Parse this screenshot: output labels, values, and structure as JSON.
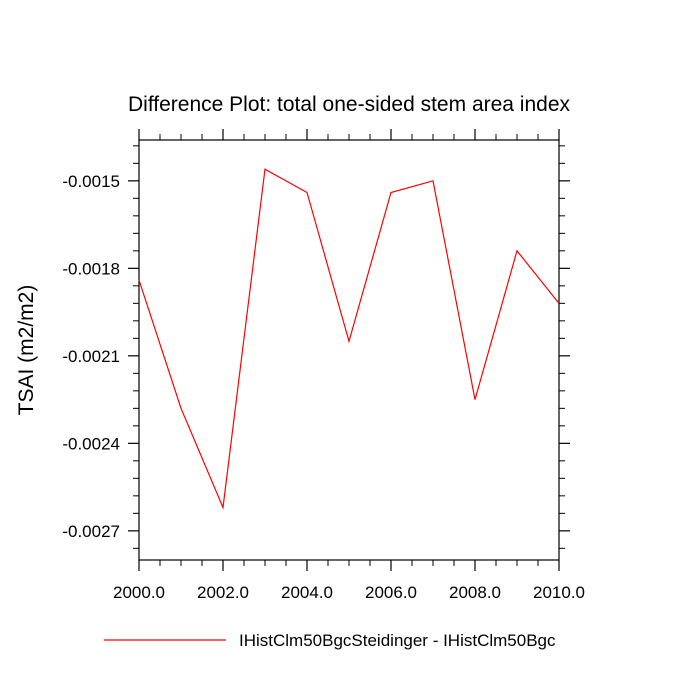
{
  "chart_data": {
    "type": "line",
    "title": "Difference Plot: total one-sided stem area index",
    "xlabel": "",
    "ylabel": "TSAI  (m2/m2)",
    "xlim": [
      2000,
      2010
    ],
    "ylim": [
      -0.0028,
      -0.00136
    ],
    "x_ticks": [
      2000,
      2002,
      2004,
      2006,
      2008,
      2010
    ],
    "x_tick_labels": [
      "2000.0",
      "2002.0",
      "2004.0",
      "2006.0",
      "2008.0",
      "2010.0"
    ],
    "y_ticks": [
      -0.0015,
      -0.0018,
      -0.0021,
      -0.0024,
      -0.0027
    ],
    "y_tick_labels": [
      "-0.0015",
      "-0.0018",
      "-0.0021",
      "-0.0024",
      "-0.0027"
    ],
    "grid": false,
    "legend_position": "bottom",
    "series": [
      {
        "name": "IHistClm50BgcSteidinger - IHistClm50Bgc",
        "color": "#ff0000",
        "x": [
          2000,
          2001,
          2002,
          2003,
          2004,
          2005,
          2006,
          2007,
          2008,
          2009,
          2010
        ],
        "values": [
          -0.00184,
          -0.00228,
          -0.00262,
          -0.00146,
          -0.00154,
          -0.00205,
          -0.00154,
          -0.0015,
          -0.00225,
          -0.00174,
          -0.00192
        ]
      }
    ]
  }
}
